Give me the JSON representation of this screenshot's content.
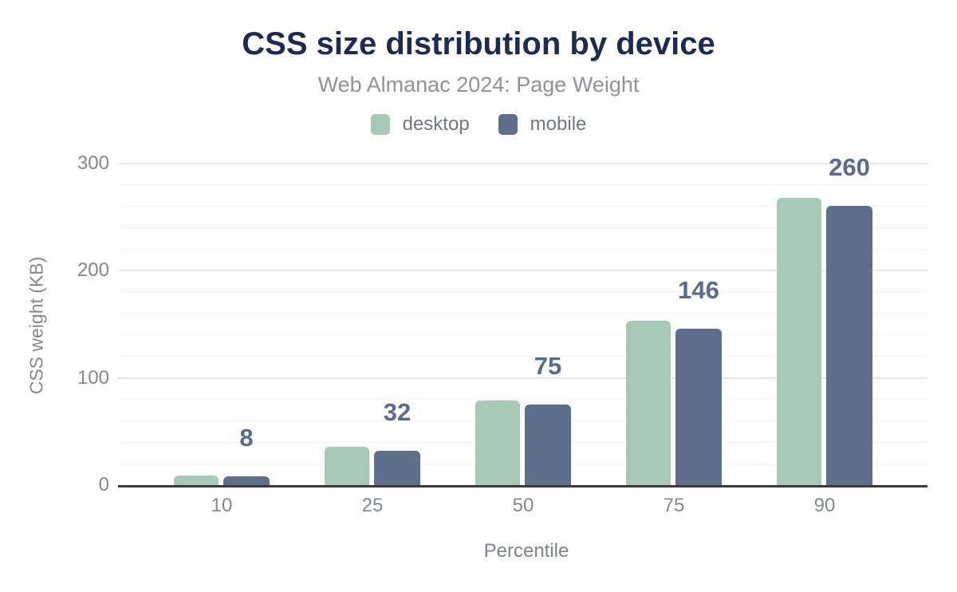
{
  "chart_data": {
    "type": "bar",
    "title": "CSS size distribution by device",
    "subtitle": "Web Almanac 2024: Page Weight",
    "xlabel": "Percentile",
    "ylabel": "CSS weight (KB)",
    "categories": [
      "10",
      "25",
      "50",
      "75",
      "90"
    ],
    "series": [
      {
        "name": "desktop",
        "color": "#a7c9b6",
        "values": [
          9,
          36,
          79,
          153,
          268
        ]
      },
      {
        "name": "mobile",
        "color": "#5e6f8e",
        "values": [
          8,
          32,
          75,
          146,
          260
        ]
      }
    ],
    "value_labels": {
      "series": "mobile",
      "values": [
        "8",
        "32",
        "75",
        "146",
        "260"
      ],
      "color": "#5a6b8d"
    },
    "ylim": [
      0,
      300
    ],
    "yticks": [
      "0",
      "100",
      "200",
      "300"
    ],
    "minor_grid_step": 20,
    "grid": true,
    "legend_position": "top"
  },
  "colors": {
    "background": "#ffffff",
    "title": "#1c2b4f",
    "subtitle": "#909296",
    "legend_text": "#73777b",
    "tick_text": "#85888c",
    "axis_line": "#393b3d",
    "grid_major": "#e6e7e9",
    "grid_minor": "#f3f4f5",
    "desktop_bar": "#a7c9b6",
    "mobile_bar": "#5e6f8e",
    "value_label": "#5a6b8d"
  }
}
